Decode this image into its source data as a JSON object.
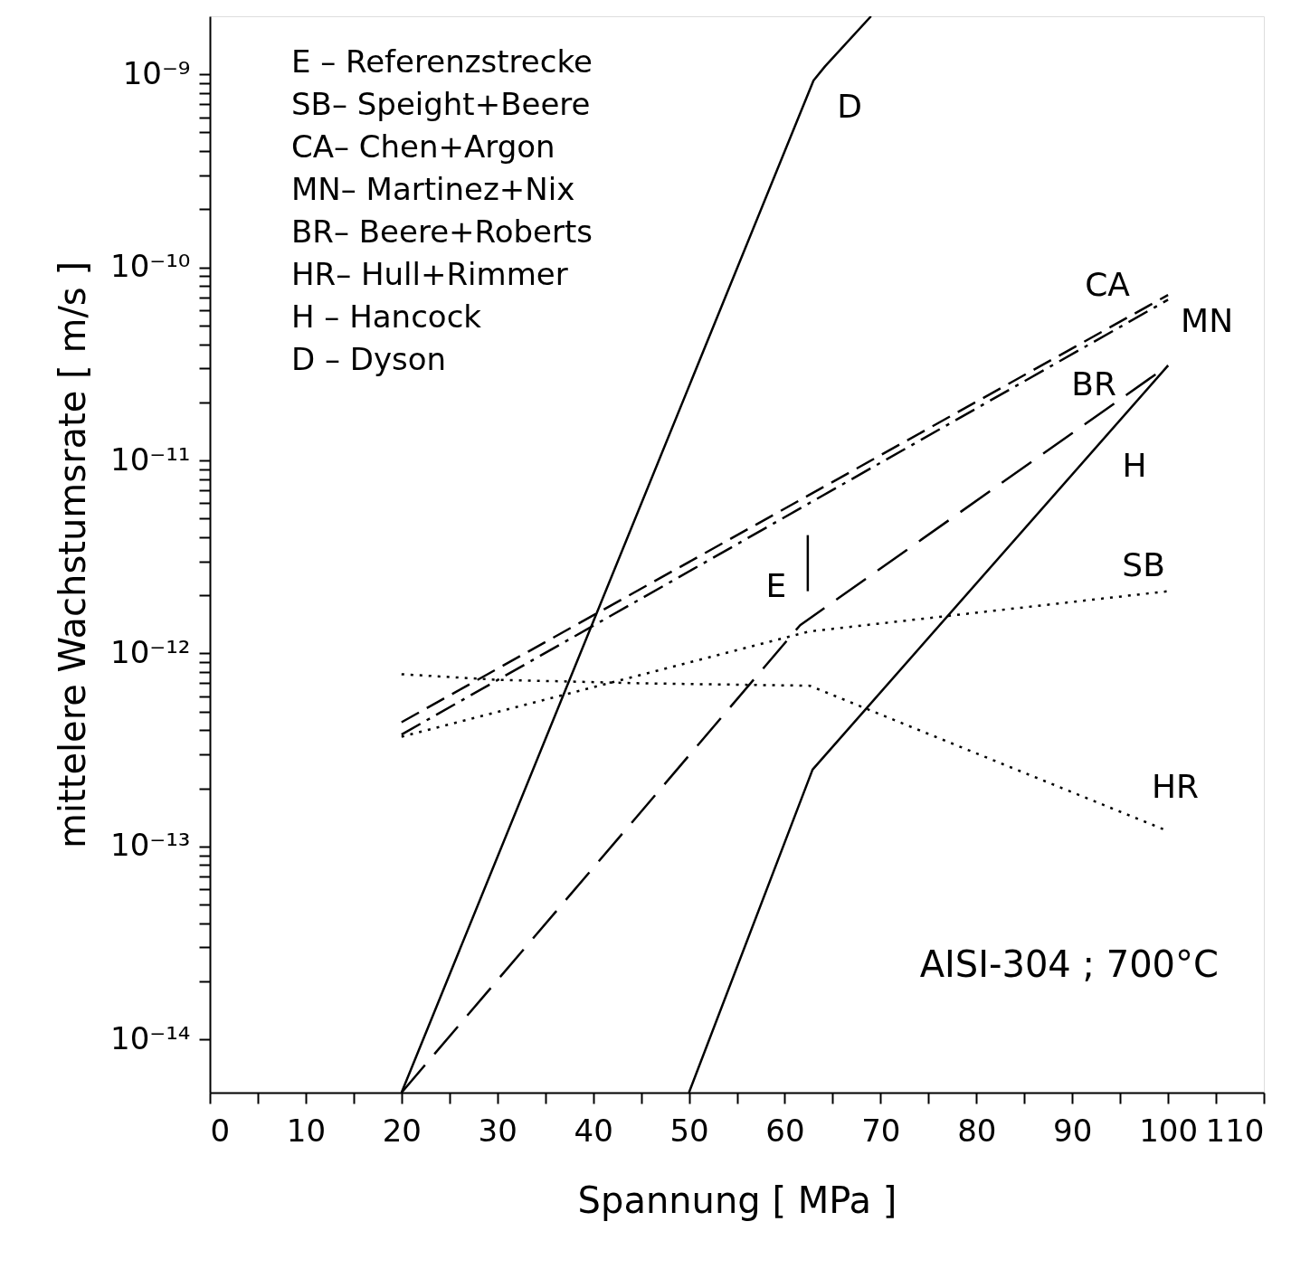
{
  "chart_data": {
    "type": "line",
    "xlabel": "Spannung [ MPa ]",
    "ylabel": "mittelere Wachstumsrate [ m/s ]",
    "log": "y",
    "grid": false,
    "legend": false,
    "marker": "none",
    "xlim": [
      0,
      110
    ],
    "ylim": [
      5.3e-15,
      2e-09
    ],
    "xticks": [
      0,
      {
        "value": 5,
        "label": null
      },
      10,
      {
        "value": 15,
        "label": null
      },
      20,
      {
        "value": 25,
        "label": null
      },
      30,
      {
        "value": 35,
        "label": null
      },
      40,
      {
        "value": 45,
        "label": null
      },
      50,
      {
        "value": 55,
        "label": null
      },
      60,
      {
        "value": 65,
        "label": null
      },
      70,
      {
        "value": 75,
        "label": null
      },
      80,
      {
        "value": 85,
        "label": null
      },
      90,
      {
        "value": 95,
        "label": null
      },
      100,
      {
        "value": 105,
        "label": null
      },
      110
    ],
    "yticks": [
      {
        "value": 1e-14,
        "label": "10⁻¹⁴"
      },
      {
        "value": 2e-14,
        "label": null
      },
      {
        "value": 3e-14,
        "label": null
      },
      {
        "value": 4e-14,
        "label": null
      },
      {
        "value": 5e-14,
        "label": null
      },
      {
        "value": 6e-14,
        "label": null
      },
      {
        "value": 7e-14,
        "label": null
      },
      {
        "value": 8e-14,
        "label": null
      },
      {
        "value": 9e-14,
        "label": null
      },
      {
        "value": 1e-13,
        "label": "10⁻¹³"
      },
      {
        "value": 2e-13,
        "label": null
      },
      {
        "value": 3e-13,
        "label": null
      },
      {
        "value": 4e-13,
        "label": null
      },
      {
        "value": 5e-13,
        "label": null
      },
      {
        "value": 6e-13,
        "label": null
      },
      {
        "value": 7e-13,
        "label": null
      },
      {
        "value": 8e-13,
        "label": null
      },
      {
        "value": 9e-13,
        "label": null
      },
      {
        "value": 1e-12,
        "label": "10⁻¹²"
      },
      {
        "value": 2e-12,
        "label": null
      },
      {
        "value": 3e-12,
        "label": null
      },
      {
        "value": 4e-12,
        "label": null
      },
      {
        "value": 5e-12,
        "label": null
      },
      {
        "value": 6e-12,
        "label": null
      },
      {
        "value": 7e-12,
        "label": null
      },
      {
        "value": 8e-12,
        "label": null
      },
      {
        "value": 9e-12,
        "label": null
      },
      {
        "value": 1e-11,
        "label": "10⁻¹¹"
      },
      {
        "value": 2e-11,
        "label": null
      },
      {
        "value": 3e-11,
        "label": null
      },
      {
        "value": 4e-11,
        "label": null
      },
      {
        "value": 5e-11,
        "label": null
      },
      {
        "value": 6e-11,
        "label": null
      },
      {
        "value": 7e-11,
        "label": null
      },
      {
        "value": 8e-11,
        "label": null
      },
      {
        "value": 9e-11,
        "label": null
      },
      {
        "value": 1e-10,
        "label": "10⁻¹⁰"
      },
      {
        "value": 2e-10,
        "label": null
      },
      {
        "value": 3e-10,
        "label": null
      },
      {
        "value": 4e-10,
        "label": null
      },
      {
        "value": 5e-10,
        "label": null
      },
      {
        "value": 6e-10,
        "label": null
      },
      {
        "value": 7e-10,
        "label": null
      },
      {
        "value": 8e-10,
        "label": null
      },
      {
        "value": 9e-10,
        "label": null
      },
      {
        "value": 1e-09,
        "label": "10⁻⁹"
      }
    ],
    "series": [
      {
        "name": "D",
        "color": "#000000",
        "line_style": "solid",
        "x": [
          20,
          63,
          64.2,
          69
        ],
        "values": [
          5.3e-15,
          9.3e-10,
          1.1e-09,
          2e-09
        ]
      },
      {
        "name": "H",
        "color": "#000000",
        "line_style": "solid",
        "x": [
          50,
          62.9,
          100
        ],
        "values": [
          5.3e-15,
          2.5e-13,
          3.1e-11
        ]
      },
      {
        "name": "BR",
        "color": "#000000",
        "line_style": "longdashed",
        "x": [
          20,
          61.6,
          100
        ],
        "values": [
          5.3e-15,
          1.4e-12,
          3.1e-11
        ]
      },
      {
        "name": "CA",
        "color": "#000000",
        "line_style": "dashed",
        "x": [
          20,
          100
        ],
        "values": [
          4.4e-13,
          7.2e-11
        ]
      },
      {
        "name": "MN",
        "color": "#000000",
        "line_style": "dashdot",
        "x": [
          20,
          100
        ],
        "values": [
          3.8e-13,
          6.8e-11
        ]
      },
      {
        "name": "SB",
        "color": "#000000",
        "line_style": "dotted",
        "x": [
          20,
          62.6,
          100
        ],
        "values": [
          3.7e-13,
          1.3e-12,
          2.1e-12
        ]
      },
      {
        "name": "HR",
        "color": "#000000",
        "line_style": "dotted",
        "x": [
          20,
          30,
          45,
          62.6,
          100
        ],
        "values": [
          7.8e-13,
          7.3e-13,
          7e-13,
          6.8e-13,
          1.2e-13
        ]
      },
      {
        "name": "E",
        "color": "#000000",
        "line_style": "solid",
        "x": [
          62.4,
          62.4
        ],
        "values": [
          2.1e-12,
          4.1e-12
        ]
      }
    ],
    "annotations": [
      "E – Referenzstrecke",
      "SB– Speight+Beere",
      "CA– Chen+Argon",
      "MN– Martinez+Nix",
      "BR– Beere+Roberts",
      "HR– Hull+Rimmer",
      "H – Hancock",
      "D – Dyson",
      "AISI-304 ; 700°C"
    ]
  }
}
